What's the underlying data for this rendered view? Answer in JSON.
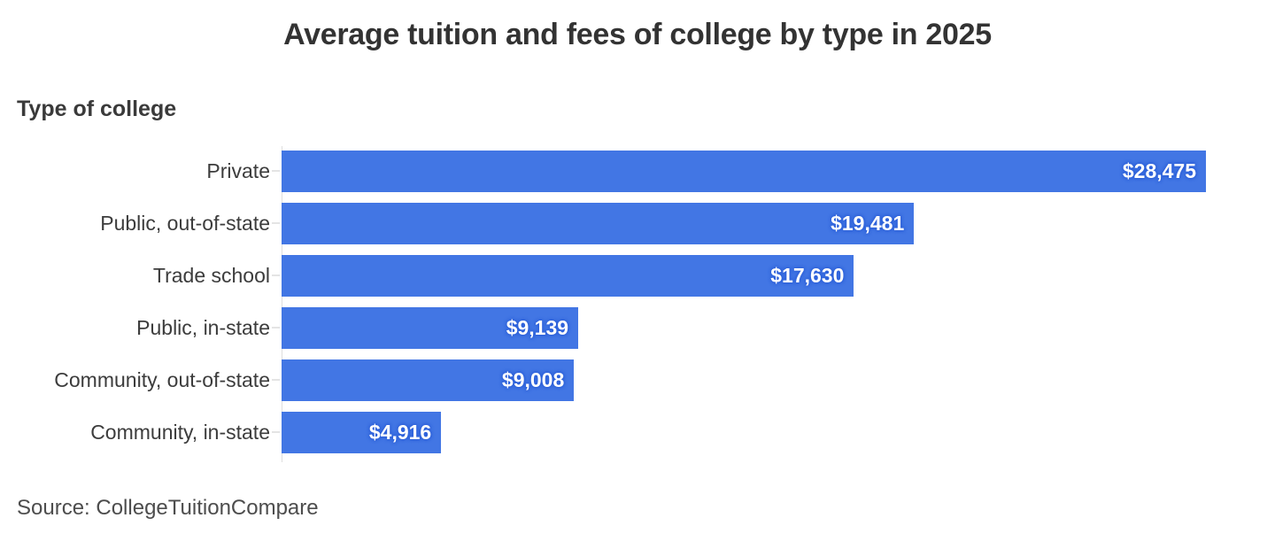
{
  "chart": {
    "title": "Average tuition and fees of college by type in 2025",
    "axis_label": "Type of college",
    "source": "Source: CollegeTuitionCompare",
    "colors": {
      "bar": "#4276e4",
      "value_label_text": "#ffffff",
      "value_label_glow": "#2b5fd9",
      "title_text": "#333333",
      "category_text": "#3c3c3c",
      "source_text": "#4d4d4d",
      "axis_line": "#dedede",
      "background": "#ffffff"
    }
  },
  "chart_data": {
    "type": "bar",
    "orientation": "horizontal",
    "title": "Average tuition and fees of college by type in 2025",
    "ylabel": "Type of college",
    "xlabel": "",
    "categories": [
      "Private",
      "Public, out-of-state",
      "Trade school",
      "Public, in-state",
      "Community, out-of-state",
      "Community, in-state"
    ],
    "values": [
      28475,
      19481,
      17630,
      9139,
      9008,
      4916
    ],
    "value_labels": [
      "$28,475",
      "$19,481",
      "$17,630",
      "$9,139",
      "$9,008",
      "$4,916"
    ],
    "xlim": [
      0,
      28475
    ],
    "grid": false,
    "legend": false,
    "value_label_position": "inside-end",
    "source": "Source: CollegeTuitionCompare"
  }
}
